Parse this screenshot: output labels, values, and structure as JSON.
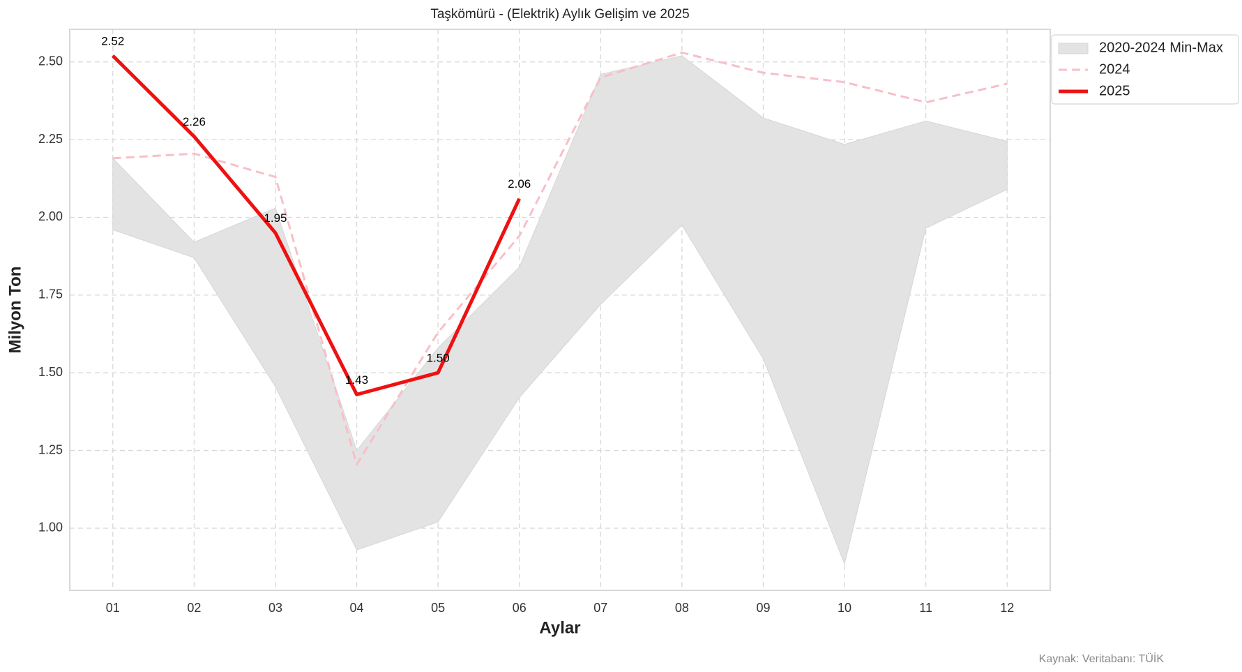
{
  "chart_data": {
    "type": "line",
    "title": "Taşkömürü - (Elektrik) Aylık Gelişim ve 2025",
    "x_label": "Aylar",
    "y_label": "Milyon Ton",
    "source": "Kaynak: Veritabanı: TÜİK",
    "categories": [
      "01",
      "02",
      "03",
      "04",
      "05",
      "06",
      "07",
      "08",
      "09",
      "10",
      "11",
      "12"
    ],
    "band": {
      "name": "2020-2024 Min-Max",
      "color": "#e3e3e3",
      "upper": [
        2.19,
        1.92,
        2.03,
        1.25,
        1.58,
        1.84,
        2.46,
        2.52,
        2.32,
        2.235,
        2.31,
        2.245
      ],
      "lower": [
        1.96,
        1.87,
        1.455,
        0.93,
        1.02,
        1.42,
        1.72,
        1.975,
        1.545,
        0.885,
        1.965,
        2.09
      ]
    },
    "series": [
      {
        "name": "2024",
        "color": "#f8bfc8",
        "dashed": true,
        "values": [
          2.19,
          2.205,
          2.13,
          1.205,
          1.63,
          1.94,
          2.45,
          2.53,
          2.465,
          2.435,
          2.37,
          2.43
        ]
      },
      {
        "name": "2025",
        "color": "#ee1111",
        "dashed": false,
        "values": [
          2.52,
          2.26,
          1.95,
          1.43,
          1.5,
          2.06,
          null,
          null,
          null,
          null,
          null,
          null
        ],
        "value_labels": [
          "2.52",
          "2.26",
          "1.95",
          "1.43",
          "1.50",
          "2.06",
          null,
          null,
          null,
          null,
          null,
          null
        ]
      }
    ],
    "ylim": [
      0.8,
      2.605
    ],
    "yticks": [
      {
        "value": 1,
        "label": "1.00"
      },
      {
        "value": 1.25,
        "label": "1.25"
      },
      {
        "value": 1.5,
        "label": "1.50"
      },
      {
        "value": 1.75,
        "label": "1.75"
      },
      {
        "value": 2,
        "label": "2.00"
      },
      {
        "value": 2.25,
        "label": "2.25"
      },
      {
        "value": 2.5,
        "label": "2.50"
      }
    ],
    "grid": true,
    "legend": "upper right"
  }
}
